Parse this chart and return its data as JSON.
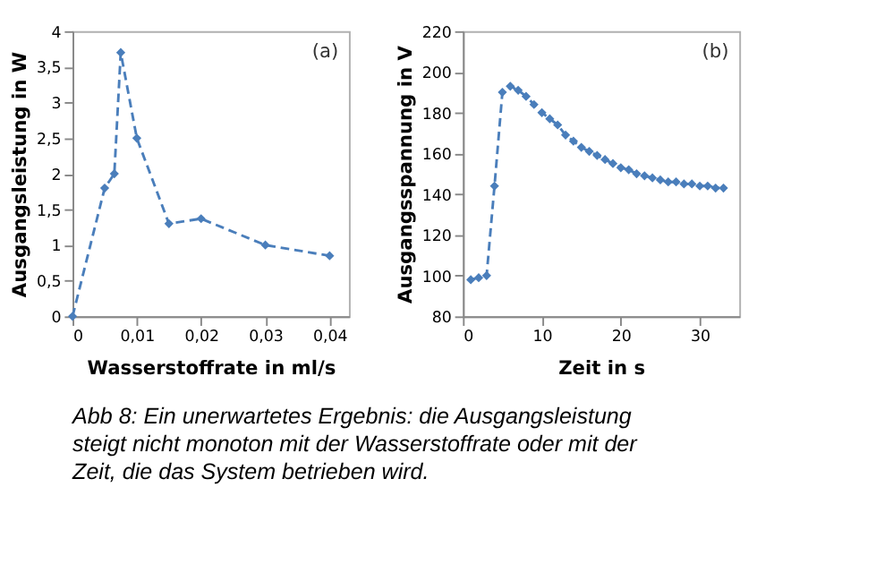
{
  "chart_data": [
    {
      "type": "line",
      "xlabel": "Wasserstoffrate in ml/s",
      "ylabel": "Ausgangsleistung in W",
      "x": [
        0,
        0.005,
        0.0065,
        0.0075,
        0.01,
        0.015,
        0.02,
        0.03,
        0.04
      ],
      "series": [
        {
          "color": "#4a7ebb",
          "values": [
            0,
            1.8,
            2.0,
            3.7,
            2.5,
            1.3,
            1.37,
            1.0,
            0.85
          ]
        }
      ],
      "xlim": [
        0,
        0.043
      ],
      "xticks": [
        {
          "value": 0,
          "label": "0"
        },
        {
          "value": 0.01,
          "label": "0,01"
        },
        {
          "value": 0.02,
          "label": "0,02"
        },
        {
          "value": 0.03,
          "label": "0,03"
        },
        {
          "value": 0.04,
          "label": "0,04"
        }
      ],
      "ylim": [
        0,
        4
      ],
      "yticks": [
        0,
        {
          "value": 0.5,
          "label": "0,5"
        },
        1,
        {
          "value": 1.5,
          "label": "1,5"
        },
        2,
        {
          "value": 2.5,
          "label": "2,5"
        },
        3,
        {
          "value": 3.5,
          "label": "3,5"
        },
        4
      ],
      "marker": "diamond",
      "line_style": "dashed",
      "grid": false,
      "annotations": [
        "(a)",
        "Abb 8: Ein unerwartetes Ergebnis: die Ausgangsleistung steigt nicht monoton mit der Wasserstoffrate oder mit der Zeit, die das System betrieben wird."
      ]
    },
    {
      "type": "line",
      "xlabel": "Zeit in s",
      "ylabel": "Ausgangsspannung in V",
      "x": [
        1,
        2,
        3,
        4,
        5,
        6,
        7,
        8,
        9,
        10,
        11,
        12,
        13,
        14,
        15,
        16,
        17,
        18,
        19,
        20,
        21,
        22,
        23,
        24,
        25,
        26,
        27,
        28,
        29,
        30,
        31,
        32,
        33
      ],
      "series": [
        {
          "color": "#4a7ebb",
          "values": [
            98,
            99,
            100,
            144,
            190,
            193,
            191,
            188,
            184,
            180,
            177,
            174,
            169,
            166,
            163,
            161,
            159,
            157,
            155,
            153,
            152,
            150,
            149,
            148,
            147,
            146,
            146,
            145,
            145,
            144,
            144,
            143,
            143
          ]
        }
      ],
      "xlim": [
        0,
        35
      ],
      "xticks": [
        0,
        10,
        20,
        30
      ],
      "ylim": [
        80,
        220
      ],
      "yticks": [
        80,
        100,
        120,
        140,
        160,
        180,
        200,
        220
      ],
      "marker": "diamond",
      "line_style": "dashed",
      "grid": false,
      "annotations": [
        "(b)"
      ]
    }
  ]
}
